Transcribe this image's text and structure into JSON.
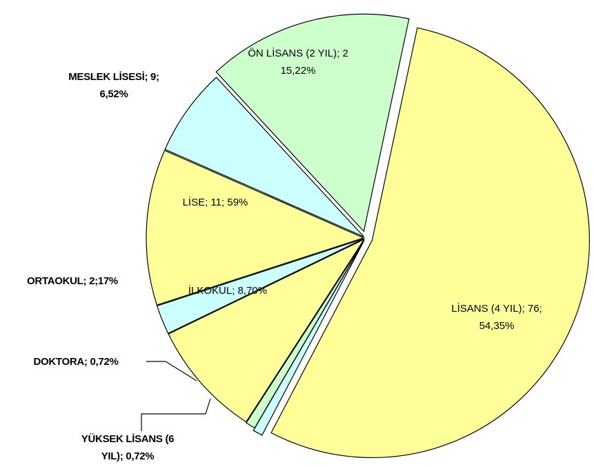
{
  "chart_data": {
    "type": "pie",
    "labels": [
      [
        "LİSANS (4 YIL); 76;",
        "54,35%"
      ],
      [
        "YÜKSEK LİSANS (6",
        "YIL); 0,72%"
      ],
      [
        "DOKTORA; 0,72%"
      ],
      [
        "İLKOKUL; 8,70%"
      ],
      [
        "ORTAOKUL; 2;17%"
      ],
      [
        "LİSE; 11; 59%"
      ],
      [
        "MESLEK LİSESİ; 9;",
        "6,52%"
      ],
      [
        "ÖN LİSANS (2 YIL); 2",
        "15,22%"
      ]
    ],
    "values": [
      54.35,
      0.72,
      0.72,
      8.7,
      2.17,
      11.59,
      6.52,
      15.22
    ],
    "colors": [
      "#ffff99",
      "#ccffff",
      "#ccffcc",
      "#ffff99",
      "#ccffff",
      "#ffff99",
      "#ccffff",
      "#ccffcc"
    ],
    "start_angle": 12
  }
}
